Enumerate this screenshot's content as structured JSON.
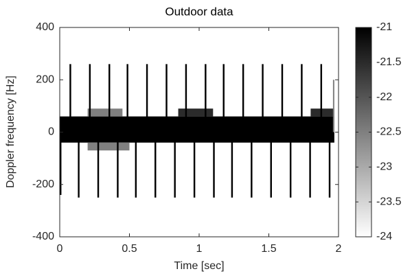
{
  "chart_data": {
    "type": "spectrogram",
    "title": "Outdoor data",
    "xlabel": "Time [sec]",
    "ylabel": "Doppler frequency [Hz]",
    "xlim": [
      0,
      2
    ],
    "xticks": [
      0,
      0.5,
      1,
      1.5,
      2
    ],
    "ylim": [
      -400,
      400
    ],
    "yticks": [
      -400,
      -200,
      0,
      200,
      400
    ],
    "clim": [
      -24,
      -21
    ],
    "cticks": [
      -24,
      -23.5,
      -23,
      -22.5,
      -22,
      -21.5,
      -21
    ],
    "colormap": [
      "#ffffff",
      "#000000"
    ],
    "cells": [
      {
        "x0": 0,
        "x1": 1.97,
        "y0": -40,
        "y1": 60,
        "value": -21
      },
      {
        "x0": 0.2,
        "x1": 0.45,
        "y0": 60,
        "y1": 90,
        "value": -22.5
      },
      {
        "x0": 0.85,
        "x1": 1.1,
        "y0": 60,
        "y1": 90,
        "value": -21.5
      },
      {
        "x0": 1.8,
        "x1": 1.97,
        "y0": 60,
        "y1": 90,
        "value": -21.5
      },
      {
        "x0": 0.2,
        "x1": 0.5,
        "y0": -70,
        "y1": -40,
        "value": -22.5
      },
      {
        "x0": 0,
        "x1": 0.012,
        "y0": -240,
        "y1": 0,
        "value": -21
      },
      {
        "x0": 0.07,
        "x1": 0.082,
        "y0": 0,
        "y1": 260,
        "value": -21
      },
      {
        "x0": 0.13,
        "x1": 0.142,
        "y0": -250,
        "y1": 0,
        "value": -21
      },
      {
        "x0": 0.21,
        "x1": 0.222,
        "y0": 0,
        "y1": 260,
        "value": -21
      },
      {
        "x0": 0.27,
        "x1": 0.282,
        "y0": -250,
        "y1": 0,
        "value": -21
      },
      {
        "x0": 0.35,
        "x1": 0.362,
        "y0": 0,
        "y1": 260,
        "value": -21
      },
      {
        "x0": 0.41,
        "x1": 0.422,
        "y0": -250,
        "y1": 0,
        "value": -21
      },
      {
        "x0": 0.48,
        "x1": 0.492,
        "y0": 0,
        "y1": 260,
        "value": -21
      },
      {
        "x0": 0.54,
        "x1": 0.552,
        "y0": -250,
        "y1": 0,
        "value": -21
      },
      {
        "x0": 0.62,
        "x1": 0.632,
        "y0": 0,
        "y1": 260,
        "value": -21
      },
      {
        "x0": 0.68,
        "x1": 0.692,
        "y0": -250,
        "y1": 0,
        "value": -21
      },
      {
        "x0": 0.76,
        "x1": 0.772,
        "y0": 0,
        "y1": 260,
        "value": -21
      },
      {
        "x0": 0.82,
        "x1": 0.832,
        "y0": -250,
        "y1": 0,
        "value": -21
      },
      {
        "x0": 0.9,
        "x1": 0.912,
        "y0": 0,
        "y1": 260,
        "value": -21
      },
      {
        "x0": 0.96,
        "x1": 0.972,
        "y0": -250,
        "y1": 0,
        "value": -21
      },
      {
        "x0": 1.04,
        "x1": 1.052,
        "y0": 0,
        "y1": 260,
        "value": -21
      },
      {
        "x0": 1.1,
        "x1": 1.112,
        "y0": -250,
        "y1": 0,
        "value": -21
      },
      {
        "x0": 1.17,
        "x1": 1.182,
        "y0": 0,
        "y1": 260,
        "value": -21
      },
      {
        "x0": 1.23,
        "x1": 1.242,
        "y0": -250,
        "y1": 0,
        "value": -21
      },
      {
        "x0": 1.31,
        "x1": 1.322,
        "y0": 0,
        "y1": 260,
        "value": -21
      },
      {
        "x0": 1.37,
        "x1": 1.382,
        "y0": -250,
        "y1": 0,
        "value": -21
      },
      {
        "x0": 1.45,
        "x1": 1.462,
        "y0": 0,
        "y1": 260,
        "value": -21
      },
      {
        "x0": 1.51,
        "x1": 1.522,
        "y0": -250,
        "y1": 0,
        "value": -21
      },
      {
        "x0": 1.59,
        "x1": 1.602,
        "y0": 0,
        "y1": 260,
        "value": -21
      },
      {
        "x0": 1.65,
        "x1": 1.662,
        "y0": -250,
        "y1": 0,
        "value": -21
      },
      {
        "x0": 1.73,
        "x1": 1.742,
        "y0": 0,
        "y1": 260,
        "value": -21
      },
      {
        "x0": 1.79,
        "x1": 1.802,
        "y0": -250,
        "y1": 0,
        "value": -21
      },
      {
        "x0": 1.87,
        "x1": 1.882,
        "y0": 0,
        "y1": 260,
        "value": -21
      },
      {
        "x0": 1.93,
        "x1": 1.942,
        "y0": -250,
        "y1": 0,
        "value": -21
      },
      {
        "x0": 1.96,
        "x1": 1.97,
        "y0": 0,
        "y1": 200,
        "value": -22.5
      }
    ]
  }
}
